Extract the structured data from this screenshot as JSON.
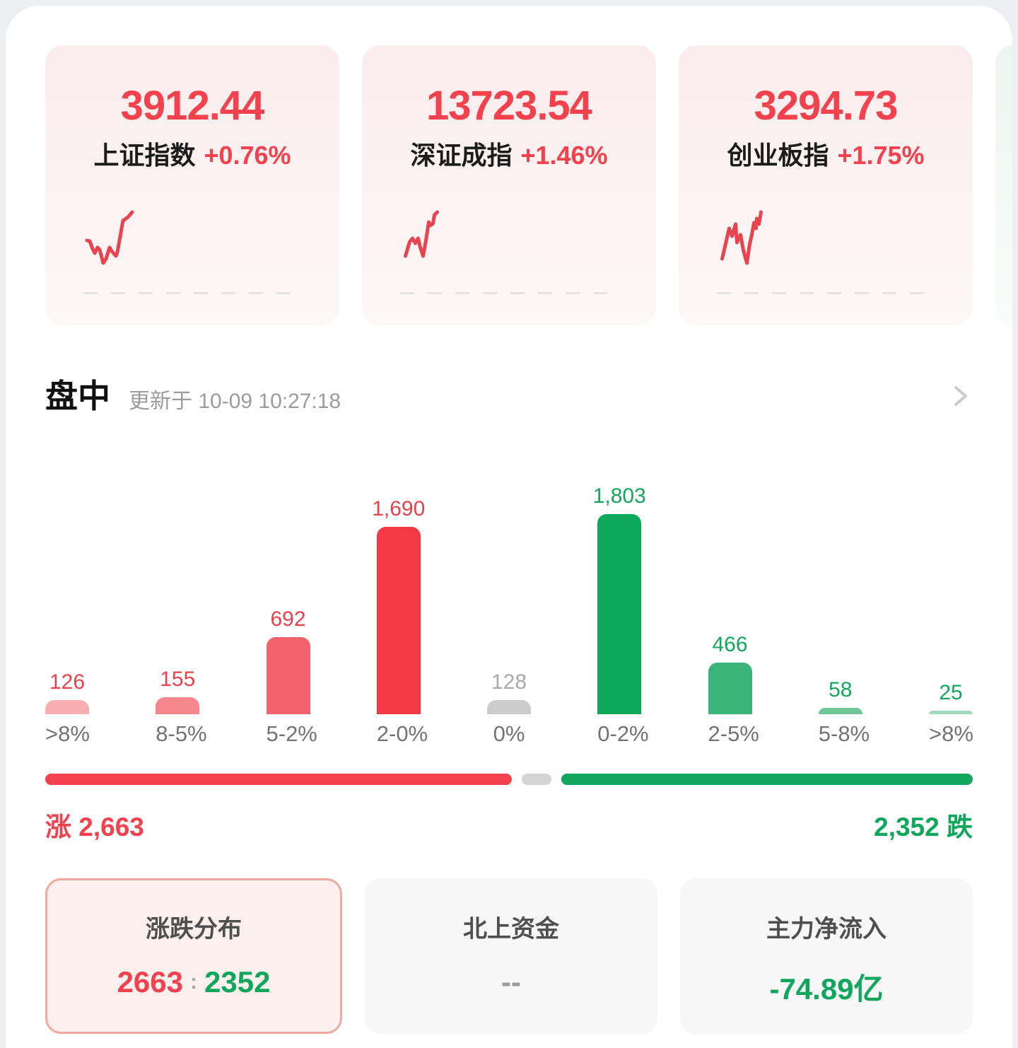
{
  "market_overview": {
    "indices": [
      {
        "name": "上证指数",
        "value": "3912.44",
        "change": "+0.76%",
        "spark_color": "#E8434E",
        "sparkline": "0,40 4,41 8,52 11,58 15,50 18,53 23,72 27,66 32,50 35,55 41,62 43,57 46,40 51,12 54,10 58,7 64,0"
      },
      {
        "name": "深证成指",
        "value": "13723.54",
        "change": "+1.46%",
        "spark_color": "#E8434E",
        "sparkline": "0,62 6,42 10,37 14,44 18,37 21,50 25,62 29,40 33,14 35,19 39,16 41,4 45,0"
      },
      {
        "name": "创业板指",
        "value": "3294.73",
        "change": "+1.75%",
        "spark_color": "#E8434E",
        "sparkline": "0,66 10,23 14,34 19,17 21,43 26,32 30,54 35,72 39,45 42,32 45,15 48,23 49,9 52,17 55,0"
      },
      {
        "name": "",
        "value": "",
        "change": "",
        "spark_color": "#2BAB67",
        "sparkline": "20,6 24,36 29,64"
      }
    ]
  },
  "section": {
    "title": "盘中",
    "updated": "更新于 10-09 10:27:18"
  },
  "icons": {
    "section_chevron": "chevron-right"
  },
  "chart_data": {
    "type": "bar",
    "title": "涨跌分布",
    "categories": [
      ">8%",
      "8-5%",
      "5-2%",
      "2-0%",
      "0%",
      "0-2%",
      "2-5%",
      "5-8%",
      ">8%"
    ],
    "values": [
      126,
      155,
      692,
      1690,
      128,
      1803,
      466,
      58,
      25
    ],
    "value_labels": [
      "126",
      "155",
      "692",
      "1,690",
      "128",
      "1,803",
      "466",
      "58",
      "25"
    ],
    "bar_colors": [
      "#F9AEB2",
      "#F8868D",
      "#F4626C",
      "#F53944",
      "#CCCCCC",
      "#0CA95A",
      "#3BB479",
      "#6FC697",
      "#A3D9BD"
    ],
    "label_colors": [
      "#E8414B",
      "#E8414B",
      "#E8414B",
      "#E8414B",
      "#AAAAAA",
      "#12A85C",
      "#12A85C",
      "#12A85C",
      "#12A85C"
    ],
    "xlabel": "",
    "ylabel": "",
    "ylim": [
      0,
      1803
    ],
    "grid": false,
    "legend": false
  },
  "summary_bar": {
    "up": 2663,
    "down": 2352,
    "up_label": "涨",
    "up_value": "2,663",
    "down_value": "2,352",
    "down_label": "跌"
  },
  "metric_cards": {
    "distribution": {
      "title": "涨跌分布",
      "up": "2663",
      "separator": ":",
      "down": "2352"
    },
    "northbound": {
      "title": "北上资金",
      "value": "--"
    },
    "main_inflow": {
      "title": "主力净流入",
      "value": "-74.89亿"
    }
  }
}
